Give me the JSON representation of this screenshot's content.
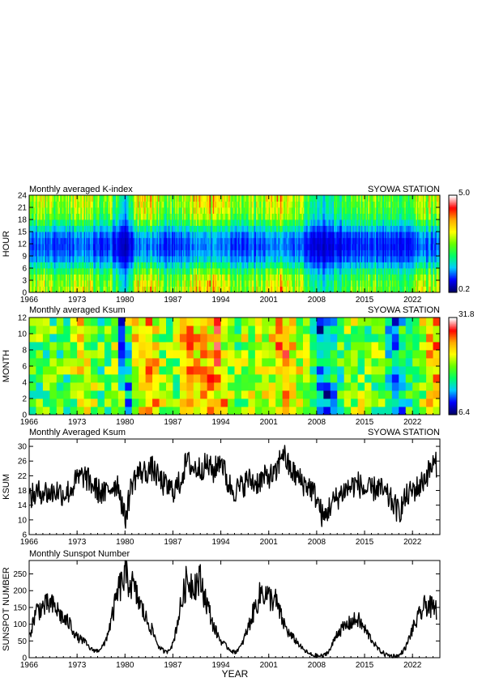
{
  "xlabel": "YEAR",
  "x_tick_labels": [
    "1966",
    "1973",
    "1980",
    "1987",
    "1994",
    "2001",
    "2008",
    "2015",
    "2022"
  ],
  "chart_data": [
    {
      "type": "heatmap",
      "title": "Monthly averaged K-index",
      "station": "SYOWA STATION",
      "ylabel": "HOUR",
      "xlim": [
        1966,
        2026
      ],
      "ylim": [
        0,
        24
      ],
      "y_ticks": [
        "0",
        "3",
        "6",
        "9",
        "12",
        "15",
        "18",
        "21",
        "24"
      ],
      "colorbar": {
        "min_label": "0.2",
        "max_label": "5.0",
        "min": 0.2,
        "max": 5.0
      },
      "colormap": [
        "#000066",
        "#0000ff",
        "#00ccff",
        "#00ff66",
        "#66ff00",
        "#ffff00",
        "#ffaa00",
        "#ff0000",
        "#ffffff"
      ],
      "description_values": {
        "hour_profile_k": [
          2.9,
          2.8,
          2.6,
          2.2,
          1.7,
          1.3,
          1.1,
          1.0,
          1.05,
          1.2,
          1.6,
          2.1,
          2.5,
          2.7,
          2.8,
          2.9
        ],
        "yearly_factor": {
          "1966": 1.0,
          "1968": 1.15,
          "1970": 1.1,
          "1972": 1.05,
          "1974": 1.25,
          "1976": 1.0,
          "1978": 1.05,
          "1980": 0.55,
          "1982": 1.35,
          "1984": 1.3,
          "1986": 1.05,
          "1988": 1.1,
          "1990": 1.3,
          "1992": 1.3,
          "1994": 1.35,
          "1996": 1.0,
          "1998": 1.05,
          "2000": 1.15,
          "2002": 1.2,
          "2003": 1.45,
          "2005": 1.2,
          "2007": 0.9,
          "2009": 0.6,
          "2011": 0.85,
          "2013": 0.95,
          "2015": 1.1,
          "2017": 1.05,
          "2019": 0.85,
          "2021": 0.9,
          "2023": 1.15,
          "2025": 1.2
        }
      }
    },
    {
      "type": "heatmap",
      "title": "Monthly averaged Ksum",
      "station": "SYOWA STATION",
      "ylabel": "MONTH",
      "xlim": [
        1966,
        2026
      ],
      "ylim": [
        0,
        12
      ],
      "y_ticks": [
        "0",
        "2",
        "4",
        "6",
        "8",
        "10",
        "12"
      ],
      "colorbar": {
        "min_label": "6.4",
        "max_label": "31.8",
        "min": 6.4,
        "max": 31.8
      },
      "colormap": [
        "#000066",
        "#0000ff",
        "#00ccff",
        "#00ff66",
        "#66ff00",
        "#ffff00",
        "#ffaa00",
        "#ff0000",
        "#ffffff"
      ]
    },
    {
      "type": "line",
      "title": "Monthly Averaged Ksum",
      "station": "SYOWA STATION",
      "ylabel": "KSUM",
      "xlim": [
        1966,
        2026
      ],
      "ylim": [
        6,
        32
      ],
      "y_ticks": [
        "6",
        "10",
        "14",
        "18",
        "22",
        "26",
        "30"
      ],
      "series_anchor_years": [
        1966,
        1967,
        1968,
        1969,
        1970,
        1971,
        1972,
        1973,
        1974,
        1975,
        1976,
        1977,
        1978,
        1979,
        1980,
        1981,
        1982,
        1983,
        1984,
        1985,
        1986,
        1987,
        1988,
        1989,
        1990,
        1991,
        1992,
        1993,
        1994,
        1995,
        1996,
        1997,
        1998,
        1999,
        2000,
        2001,
        2002,
        2003,
        2004,
        2005,
        2006,
        2007,
        2008,
        2009,
        2010,
        2011,
        2012,
        2013,
        2014,
        2015,
        2016,
        2017,
        2018,
        2019,
        2020,
        2021,
        2022,
        2023,
        2024,
        2025
      ],
      "series_anchor_values": [
        16,
        17,
        18,
        17,
        18,
        17,
        18,
        21,
        22,
        20,
        18,
        17,
        19,
        20,
        10,
        20,
        23,
        23,
        24,
        21,
        19,
        18,
        20,
        26,
        24,
        24,
        25,
        23,
        27,
        20,
        18,
        19,
        21,
        20,
        21,
        22,
        22,
        29,
        24,
        22,
        20,
        19,
        16,
        10,
        14,
        16,
        18,
        19,
        20,
        18,
        18,
        19,
        17,
        15,
        12,
        16,
        18,
        19,
        22,
        25
      ]
    },
    {
      "type": "line",
      "title": "Monthly Sunspot Number",
      "station": "",
      "ylabel": "SUNSPOT NUMBER",
      "xlim": [
        1966,
        2026
      ],
      "ylim": [
        0,
        290
      ],
      "y_ticks": [
        "0",
        "50",
        "100",
        "150",
        "200",
        "250"
      ],
      "series_anchor_years": [
        1966.0,
        1967.0,
        1968.0,
        1969.0,
        1970.0,
        1971.0,
        1972.0,
        1973.0,
        1974.0,
        1975.0,
        1976.0,
        1977.0,
        1978.0,
        1979.0,
        1980.0,
        1981.0,
        1982.0,
        1983.0,
        1984.0,
        1985.0,
        1986.0,
        1987.0,
        1988.0,
        1989.0,
        1990.0,
        1991.0,
        1992.0,
        1993.0,
        1994.0,
        1995.0,
        1996.0,
        1997.0,
        1998.0,
        1999.0,
        2000.0,
        2001.0,
        2002.0,
        2003.0,
        2004.0,
        2005.0,
        2006.0,
        2007.0,
        2008.0,
        2009.0,
        2010.0,
        2011.0,
        2012.0,
        2013.0,
        2014.0,
        2015.0,
        2016.0,
        2017.0,
        2018.0,
        2019.0,
        2020.0,
        2021.0,
        2022.0,
        2023.0,
        2024.0,
        2025.0
      ],
      "series_anchor_values": [
        60,
        140,
        150,
        160,
        145,
        115,
        100,
        60,
        50,
        25,
        20,
        40,
        110,
        200,
        240,
        220,
        170,
        120,
        80,
        30,
        15,
        40,
        140,
        230,
        220,
        230,
        160,
        90,
        50,
        30,
        15,
        35,
        90,
        150,
        200,
        180,
        170,
        110,
        70,
        50,
        25,
        10,
        5,
        5,
        25,
        75,
        90,
        105,
        115,
        85,
        55,
        25,
        10,
        5,
        5,
        30,
        85,
        125,
        160,
        145
      ]
    }
  ]
}
